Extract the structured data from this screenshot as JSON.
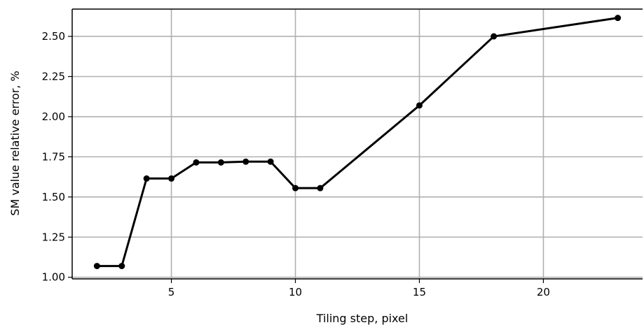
{
  "chart_data": {
    "type": "line",
    "title": "",
    "xlabel": "Tiling step, pixel",
    "ylabel": "SM value relative error, %",
    "xlim": [
      1,
      24
    ],
    "ylim": [
      0.99,
      2.67
    ],
    "x_ticks": [
      5,
      10,
      15,
      20
    ],
    "x_tick_labels": [
      "5",
      "10",
      "15",
      "20"
    ],
    "y_ticks": [
      1.0,
      1.25,
      1.5,
      1.75,
      2.0,
      2.25,
      2.5
    ],
    "y_tick_labels": [
      "1.00",
      "1.25",
      "1.50",
      "1.75",
      "2.00",
      "2.25",
      "2.50"
    ],
    "grid": true,
    "legend": "none",
    "series": [
      {
        "color": "#000000",
        "marker": "circle",
        "x": [
          2,
          3,
          4,
          5,
          6,
          7,
          8,
          9,
          10,
          11,
          15,
          18,
          23
        ],
        "y": [
          1.07,
          1.07,
          1.615,
          1.615,
          1.715,
          1.715,
          1.72,
          1.72,
          1.555,
          1.555,
          2.07,
          2.5,
          2.615
        ]
      }
    ],
    "colors": {
      "grid": "#b0b0b0",
      "axis": "#000000",
      "line": "#000000"
    }
  }
}
